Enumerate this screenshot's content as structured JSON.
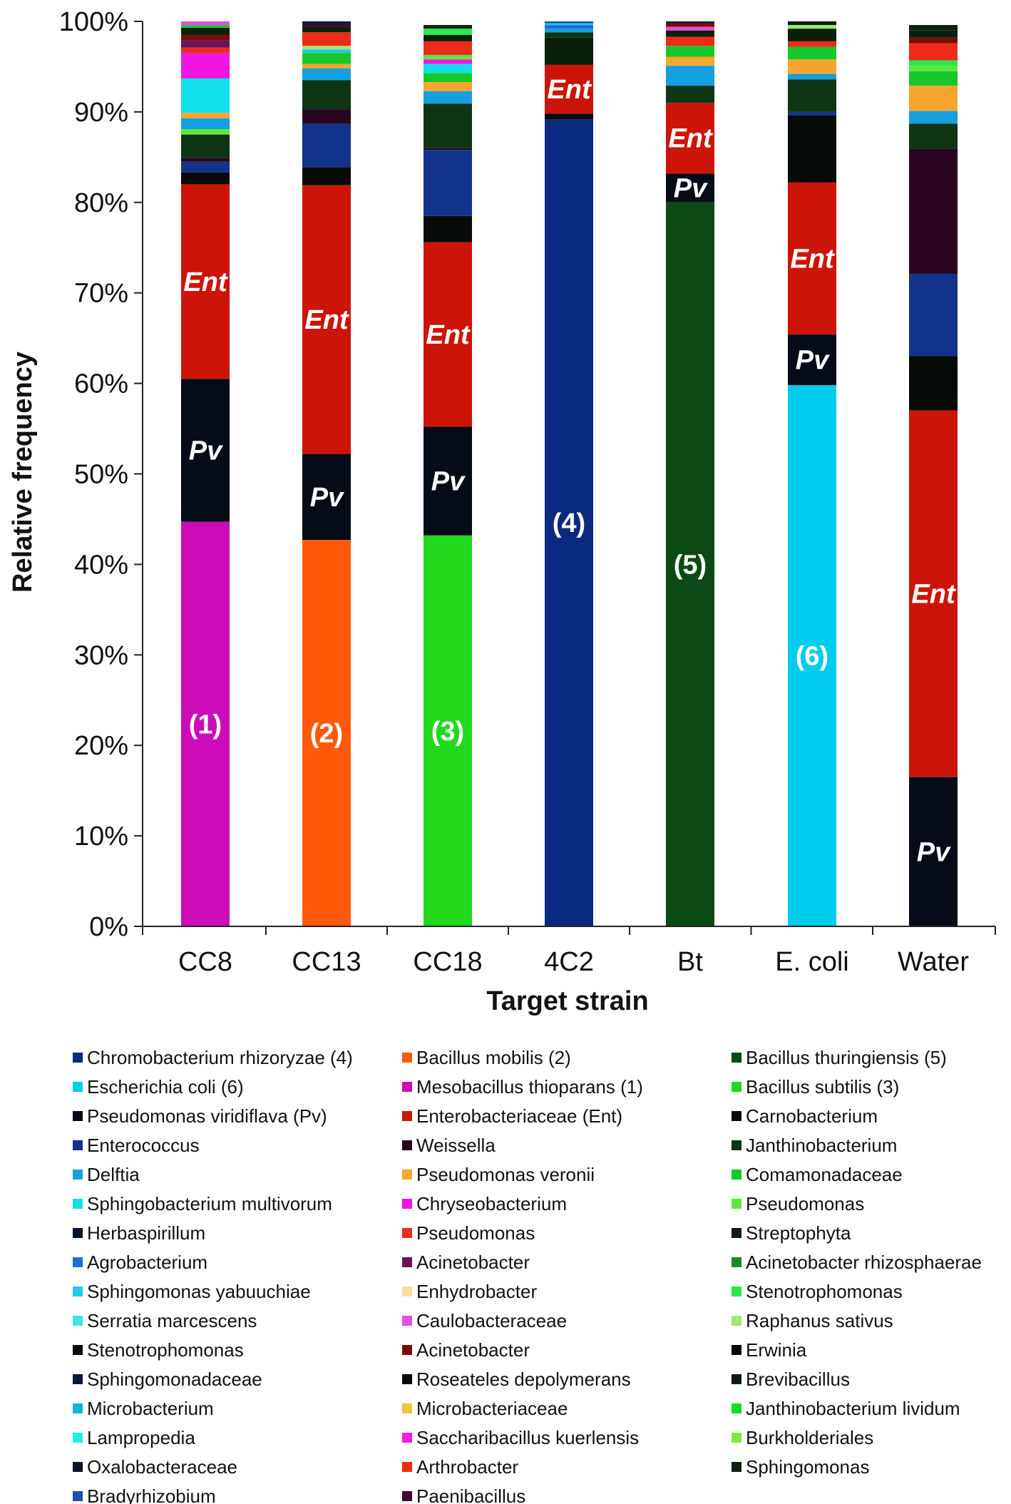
{
  "chart_data": {
    "type": "bar",
    "stacked": true,
    "xlabel": "Target strain",
    "ylabel": "Relative frequency",
    "ylim": [
      0,
      100
    ],
    "y_ticks": [
      "0%",
      "10%",
      "20%",
      "30%",
      "40%",
      "50%",
      "60%",
      "70%",
      "80%",
      "90%",
      "100%"
    ],
    "categories": [
      "CC8",
      "CC13",
      "CC18",
      "4C2",
      "Bt",
      "E. coli",
      "Water"
    ],
    "legend_position": "bottom",
    "legend": [
      {
        "name": "Chromobacterium rhizoryzae (4)",
        "color": "#0a2a80"
      },
      {
        "name": "Bacillus mobilis (2)",
        "color": "#ff5a0a"
      },
      {
        "name": "Bacillus thuringiensis (5)",
        "color": "#0c4a15"
      },
      {
        "name": "Escherichia coli (6)",
        "color": "#00cdee"
      },
      {
        "name": "Mesobacillus thioparans (1)",
        "color": "#cc0cb8"
      },
      {
        "name": "Bacillus subtilis (3)",
        "color": "#22d81c"
      },
      {
        "name": "Pseudomonas viridiflava (Pv)",
        "color": "#050c18"
      },
      {
        "name": "Enterobacteriaceae (Ent)",
        "color": "#cc1508"
      },
      {
        "name": "Carnobacterium",
        "color": "#070b07"
      },
      {
        "name": "Enterococcus",
        "color": "#12328c"
      },
      {
        "name": "Weissella",
        "color": "#2a0620"
      },
      {
        "name": "Janthinobacterium",
        "color": "#0e3514"
      },
      {
        "name": "Delftia",
        "color": "#14a0e0"
      },
      {
        "name": "Pseudomonas veronii",
        "color": "#f7a52e"
      },
      {
        "name": "Comamonadaceae",
        "color": "#16c82a"
      },
      {
        "name": "Sphingobacterium multivorum",
        "color": "#10e0ec"
      },
      {
        "name": "Chryseobacterium",
        "color": "#ee16e0"
      },
      {
        "name": "Pseudomonas",
        "color": "#5ce83c"
      },
      {
        "name": "Herbaspirillum",
        "color": "#0a1430"
      },
      {
        "name": "Pseudomonas",
        "color": "#ee2a18"
      },
      {
        "name": "Streptophyta",
        "color": "#0a200c"
      },
      {
        "name": "Agrobacterium",
        "color": "#1c70d8"
      },
      {
        "name": "Acinetobacter",
        "color": "#6a1454"
      },
      {
        "name": "Acinetobacter rhizosphaerae",
        "color": "#1c8a2a"
      },
      {
        "name": "Sphingomonas yabuuchiae",
        "color": "#24c8e8"
      },
      {
        "name": "Enhydrobacter",
        "color": "#f8dca0"
      },
      {
        "name": "Stenotrophomonas",
        "color": "#2ae84c"
      },
      {
        "name": "Serratia marcescens",
        "color": "#40e4e4"
      },
      {
        "name": "Caulobacteraceae",
        "color": "#e84ce0"
      },
      {
        "name": "Raphanus sativus",
        "color": "#a0e870"
      },
      {
        "name": "Stenotrophomonas",
        "color": "#0a0a0a"
      },
      {
        "name": "Acinetobacter",
        "color": "#7a0c08"
      },
      {
        "name": "Erwinia",
        "color": "#040804"
      },
      {
        "name": "Sphingomonadaceae",
        "color": "#0c1838"
      },
      {
        "name": "Roseateles depolymerans",
        "color": "#0c0810"
      },
      {
        "name": "Brevibacillus",
        "color": "#0c1c10"
      },
      {
        "name": "Microbacterium",
        "color": "#10b4d8"
      },
      {
        "name": "Microbacteriaceae",
        "color": "#f4c440"
      },
      {
        "name": "Janthinobacterium lividum",
        "color": "#10e020"
      },
      {
        "name": "Lampropedia",
        "color": "#20ecec"
      },
      {
        "name": "Saccharibacillus kuerlensis",
        "color": "#f020e0"
      },
      {
        "name": "Burkholderiales",
        "color": "#80e840"
      },
      {
        "name": "Oxalobacteraceae",
        "color": "#0a1428"
      },
      {
        "name": "Arthrobacter",
        "color": "#f02a10"
      },
      {
        "name": "Sphingomonas",
        "color": "#0c200e"
      },
      {
        "name": "Bradyrhizobium",
        "color": "#1650b0"
      },
      {
        "name": "Paenibacillus",
        "color": "#3c0834"
      }
    ],
    "bars": [
      {
        "category": "CC8",
        "segments": [
          {
            "name": "Mesobacillus thioparans (1)",
            "value": 44.7,
            "color": "#cc0cb8",
            "label": "(1)"
          },
          {
            "name": "Pseudomonas viridiflava (Pv)",
            "value": 15.8,
            "color": "#050c18",
            "label": "Pv"
          },
          {
            "name": "Enterobacteriaceae (Ent)",
            "value": 21.5,
            "color": "#cc1508",
            "label": "Ent"
          },
          {
            "name": "Carnobacterium",
            "value": 1.3,
            "color": "#070b07"
          },
          {
            "name": "Enterococcus",
            "value": 1.2,
            "color": "#12328c"
          },
          {
            "name": "Weissella",
            "value": 0.4,
            "color": "#2a0620"
          },
          {
            "name": "Janthinobacterium",
            "value": 2.6,
            "color": "#0e3514"
          },
          {
            "name": "Pseudomonas",
            "value": 0.6,
            "color": "#5ce83c"
          },
          {
            "name": "Delftia",
            "value": 1.2,
            "color": "#14a0e0"
          },
          {
            "name": "Pseudomonas veronii",
            "value": 0.6,
            "color": "#f7a52e"
          },
          {
            "name": "Sphingobacterium multivorum",
            "value": 3.8,
            "color": "#10e0ec"
          },
          {
            "name": "Chryseobacterium",
            "value": 2.8,
            "color": "#ee16e0"
          },
          {
            "name": "Pseudomonas",
            "value": 0.6,
            "color": "#ee2a18"
          },
          {
            "name": "Acinetobacter",
            "value": 0.8,
            "color": "#6a1454"
          },
          {
            "name": "Acinetobacter",
            "value": 0.6,
            "color": "#7a0c08"
          },
          {
            "name": "Streptophyta",
            "value": 0.8,
            "color": "#0a200c"
          },
          {
            "name": "Comamonadaceae",
            "value": 0.3,
            "color": "#16c82a"
          },
          {
            "name": "Caulobacteraceae",
            "value": 0.4,
            "color": "#e84ce0"
          }
        ]
      },
      {
        "category": "CC13",
        "segments": [
          {
            "name": "Bacillus mobilis (2)",
            "value": 42.7,
            "color": "#ff5a0a",
            "label": "(2)"
          },
          {
            "name": "Pseudomonas viridiflava (Pv)",
            "value": 9.5,
            "color": "#050c18",
            "label": "Pv"
          },
          {
            "name": "Enterobacteriaceae (Ent)",
            "value": 29.7,
            "color": "#cc1508",
            "label": "Ent"
          },
          {
            "name": "Carnobacterium",
            "value": 2.0,
            "color": "#070b07"
          },
          {
            "name": "Enterococcus",
            "value": 4.8,
            "color": "#12328c"
          },
          {
            "name": "Weissella",
            "value": 1.6,
            "color": "#2a0620"
          },
          {
            "name": "Janthinobacterium",
            "value": 3.2,
            "color": "#0e3514"
          },
          {
            "name": "Delftia",
            "value": 1.3,
            "color": "#14a0e0"
          },
          {
            "name": "Pseudomonas veronii",
            "value": 0.5,
            "color": "#f7a52e"
          },
          {
            "name": "Comamonadaceae",
            "value": 1.2,
            "color": "#16c82a"
          },
          {
            "name": "Sphingomonas yabuuchiae",
            "value": 0.4,
            "color": "#24c8e8"
          },
          {
            "name": "Raphanus sativus",
            "value": 0.4,
            "color": "#a0e870"
          },
          {
            "name": "Pseudomonas",
            "value": 1.5,
            "color": "#ee2a18"
          },
          {
            "name": "Streptophyta",
            "value": 0.6,
            "color": "#0a200c"
          },
          {
            "name": "Paenibacillus",
            "value": 0.4,
            "color": "#3c0834"
          },
          {
            "name": "Sphingomonadaceae",
            "value": 0.2,
            "color": "#0c1838"
          }
        ]
      },
      {
        "category": "CC18",
        "segments": [
          {
            "name": "Bacillus subtilis (3)",
            "value": 43.2,
            "color": "#22d81c",
            "label": "(3)"
          },
          {
            "name": "Pseudomonas viridiflava (Pv)",
            "value": 12.0,
            "color": "#050c18",
            "label": "Pv"
          },
          {
            "name": "Enterobacteriaceae (Ent)",
            "value": 20.4,
            "color": "#cc1508",
            "label": "Ent"
          },
          {
            "name": "Carnobacterium",
            "value": 2.9,
            "color": "#070b07"
          },
          {
            "name": "Enterococcus",
            "value": 7.3,
            "color": "#12328c"
          },
          {
            "name": "Weissella",
            "value": 0.2,
            "color": "#2a0620"
          },
          {
            "name": "Janthinobacterium",
            "value": 4.9,
            "color": "#0e3514"
          },
          {
            "name": "Delftia",
            "value": 1.4,
            "color": "#14a0e0"
          },
          {
            "name": "Pseudomonas veronii",
            "value": 1.0,
            "color": "#f7a52e"
          },
          {
            "name": "Comamonadaceae",
            "value": 1.0,
            "color": "#16c82a"
          },
          {
            "name": "Sphingobacterium multivorum",
            "value": 1.0,
            "color": "#10e0ec"
          },
          {
            "name": "Chryseobacterium",
            "value": 0.5,
            "color": "#ee16e0"
          },
          {
            "name": "Pseudomonas",
            "value": 0.5,
            "color": "#5ce83c"
          },
          {
            "name": "Pseudomonas",
            "value": 1.5,
            "color": "#ee2a18"
          },
          {
            "name": "Streptophyta",
            "value": 0.7,
            "color": "#0a200c"
          },
          {
            "name": "Stenotrophomonas",
            "value": 0.7,
            "color": "#2ae84c"
          },
          {
            "name": "Sphingomonas",
            "value": 0.4,
            "color": "#0c200e"
          }
        ]
      },
      {
        "category": "4C2",
        "segments": [
          {
            "name": "Chromobacterium rhizoryzae (4)",
            "value": 89.2,
            "color": "#0a2a80",
            "label": "(4)"
          },
          {
            "name": "Carnobacterium",
            "value": 0.6,
            "color": "#070b07"
          },
          {
            "name": "Enterobacteriaceae (Ent)",
            "value": 5.4,
            "color": "#cc1508",
            "label": "Ent"
          },
          {
            "name": "Streptophyta",
            "value": 3.0,
            "color": "#0a200c"
          },
          {
            "name": "Janthinobacterium",
            "value": 0.6,
            "color": "#0e3514"
          },
          {
            "name": "Delftia",
            "value": 0.4,
            "color": "#14a0e0"
          },
          {
            "name": "Agrobacterium",
            "value": 0.4,
            "color": "#1c70d8"
          },
          {
            "name": "Sphingomonas yabuuchiae",
            "value": 0.2,
            "color": "#24c8e8"
          },
          {
            "name": "Bradyrhizobium",
            "value": 0.2,
            "color": "#1650b0"
          }
        ]
      },
      {
        "category": "Bt",
        "segments": [
          {
            "name": "Bacillus thuringiensis (5)",
            "value": 80.0,
            "color": "#0c4a15",
            "label": "(5)"
          },
          {
            "name": "Pseudomonas viridiflava (Pv)",
            "value": 3.2,
            "color": "#050c18",
            "label": "Pv"
          },
          {
            "name": "Enterobacteriaceae (Ent)",
            "value": 7.8,
            "color": "#cc1508",
            "label": "Ent"
          },
          {
            "name": "Janthinobacterium",
            "value": 1.9,
            "color": "#0e3514"
          },
          {
            "name": "Delftia",
            "value": 2.2,
            "color": "#14a0e0"
          },
          {
            "name": "Pseudomonas veronii",
            "value": 1.0,
            "color": "#f7a52e"
          },
          {
            "name": "Comamonadaceae",
            "value": 1.2,
            "color": "#16c82a"
          },
          {
            "name": "Pseudomonas",
            "value": 1.0,
            "color": "#ee2a18"
          },
          {
            "name": "Streptophyta",
            "value": 0.7,
            "color": "#0a200c"
          },
          {
            "name": "Caulobacteraceae",
            "value": 0.4,
            "color": "#e84ce0"
          },
          {
            "name": "Acinetobacter",
            "value": 0.4,
            "color": "#7a0c08"
          },
          {
            "name": "Sphingomonadaceae",
            "value": 0.2,
            "color": "#0c1838"
          }
        ]
      },
      {
        "category": "E. coli",
        "segments": [
          {
            "name": "Escherichia coli (6)",
            "value": 59.8,
            "color": "#00cdee",
            "label": "(6)"
          },
          {
            "name": "Pseudomonas viridiflava (Pv)",
            "value": 5.6,
            "color": "#050c18",
            "label": "Pv"
          },
          {
            "name": "Enterobacteriaceae (Ent)",
            "value": 16.8,
            "color": "#cc1508",
            "label": "Ent"
          },
          {
            "name": "Carnobacterium",
            "value": 7.4,
            "color": "#070b07"
          },
          {
            "name": "Enterococcus",
            "value": 0.4,
            "color": "#12328c"
          },
          {
            "name": "Janthinobacterium",
            "value": 3.6,
            "color": "#0e3514"
          },
          {
            "name": "Delftia",
            "value": 0.6,
            "color": "#14a0e0"
          },
          {
            "name": "Pseudomonas veronii",
            "value": 1.6,
            "color": "#f7a52e"
          },
          {
            "name": "Comamonadaceae",
            "value": 1.4,
            "color": "#16c82a"
          },
          {
            "name": "Pseudomonas",
            "value": 0.6,
            "color": "#ee2a18"
          },
          {
            "name": "Streptophyta",
            "value": 1.4,
            "color": "#0a200c"
          },
          {
            "name": "Raphanus sativus",
            "value": 0.4,
            "color": "#a0e870"
          },
          {
            "name": "Brevibacillus",
            "value": 0.4,
            "color": "#0c1c10"
          }
        ]
      },
      {
        "category": "Water",
        "segments": [
          {
            "name": "Pseudomonas viridiflava (Pv)",
            "value": 16.5,
            "color": "#050c18",
            "label": "Pv"
          },
          {
            "name": "Enterobacteriaceae (Ent)",
            "value": 40.5,
            "color": "#cc1508",
            "label": "Ent"
          },
          {
            "name": "Carnobacterium",
            "value": 6.0,
            "color": "#070b07"
          },
          {
            "name": "Enterococcus",
            "value": 9.1,
            "color": "#12328c"
          },
          {
            "name": "Weissella",
            "value": 13.8,
            "color": "#2a0620"
          },
          {
            "name": "Janthinobacterium",
            "value": 2.8,
            "color": "#0e3514"
          },
          {
            "name": "Delftia",
            "value": 1.4,
            "color": "#14a0e0"
          },
          {
            "name": "Pseudomonas veronii",
            "value": 2.8,
            "color": "#f7a52e"
          },
          {
            "name": "Comamonadaceae",
            "value": 1.6,
            "color": "#16c82a"
          },
          {
            "name": "Pseudomonas",
            "value": 0.6,
            "color": "#5ce83c"
          },
          {
            "name": "Stenotrophomonas",
            "value": 0.6,
            "color": "#2ae84c"
          },
          {
            "name": "Pseudomonas",
            "value": 1.9,
            "color": "#ee2a18"
          },
          {
            "name": "Acinetobacter",
            "value": 0.6,
            "color": "#7a0c08"
          },
          {
            "name": "Streptophyta",
            "value": 0.8,
            "color": "#0a200c"
          },
          {
            "name": "Sphingomonas",
            "value": 0.6,
            "color": "#0c200e"
          }
        ]
      }
    ]
  }
}
